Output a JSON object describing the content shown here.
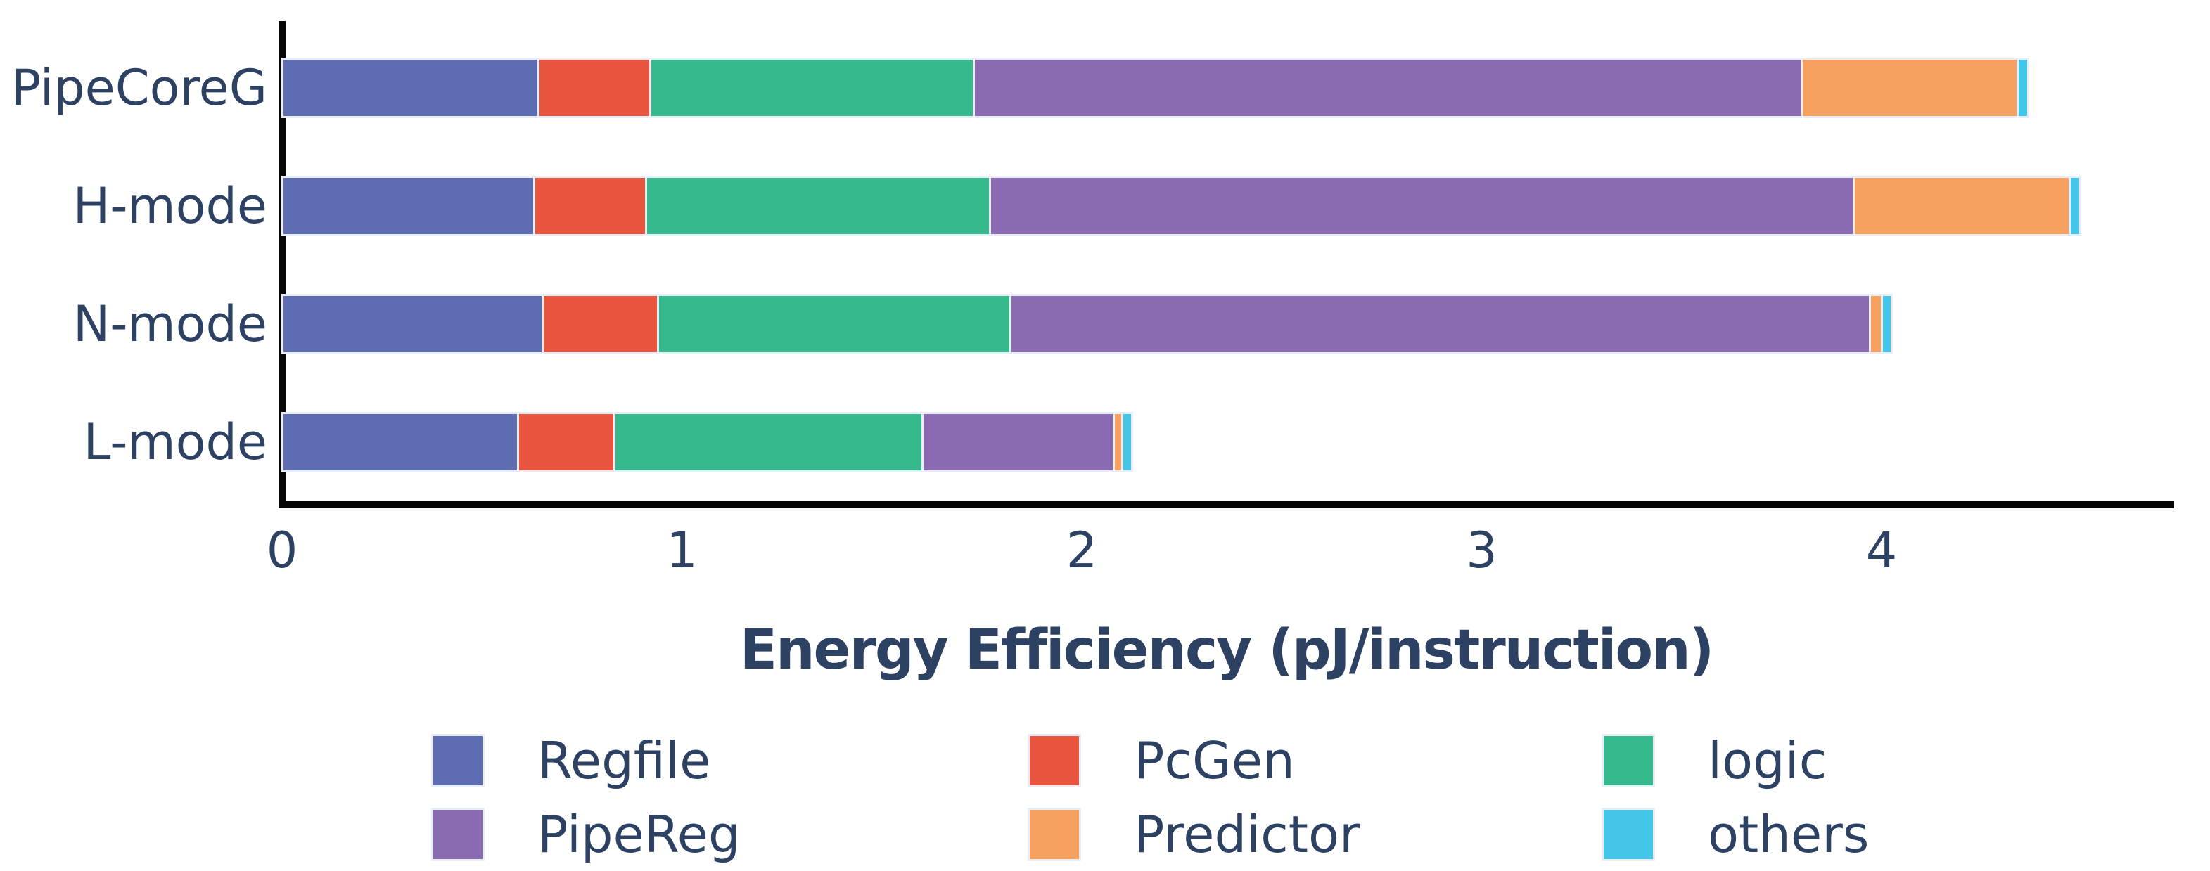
{
  "chart_data": {
    "type": "bar",
    "orientation": "horizontal",
    "stacked": true,
    "title": "",
    "xlabel": "Energy Efficiency (pJ/instruction)",
    "ylabel": "",
    "categories": [
      "PipeCoreG",
      "H-mode",
      "N-mode",
      "L-mode"
    ],
    "series": [
      {
        "name": "Regfile",
        "color": "#5e6cb2",
        "values": [
          0.64,
          0.63,
          0.65,
          0.59
        ]
      },
      {
        "name": "PcGen",
        "color": "#e9543e",
        "values": [
          0.28,
          0.28,
          0.29,
          0.24
        ]
      },
      {
        "name": "logic",
        "color": "#35b88b",
        "values": [
          0.81,
          0.86,
          0.88,
          0.77
        ]
      },
      {
        "name": "PipeReg",
        "color": "#8a6ab1",
        "values": [
          2.07,
          2.16,
          2.15,
          0.48
        ]
      },
      {
        "name": "Predictor",
        "color": "#f6a15f",
        "values": [
          0.54,
          0.54,
          0.03,
          0.02
        ]
      },
      {
        "name": "others",
        "color": "#43c6e8",
        "values": [
          0.02,
          0.02,
          0.02,
          0.02
        ]
      }
    ],
    "totals": [
      4.36,
      4.49,
      4.02,
      2.12
    ],
    "x_ticks": [
      "0",
      "1",
      "2",
      "3",
      "4"
    ],
    "xlim": [
      0,
      4.74
    ],
    "grid": false,
    "legend_position": "bottom",
    "legend_columns": [
      [
        "Regfile",
        "PipeReg"
      ],
      [
        "PcGen",
        "Predictor"
      ],
      [
        "logic",
        "others"
      ]
    ],
    "colors": {
      "axis_text": "#2d4163",
      "axis_line": "#060606",
      "bar_edge": "#e9edf6",
      "background": "#ffffff"
    }
  }
}
